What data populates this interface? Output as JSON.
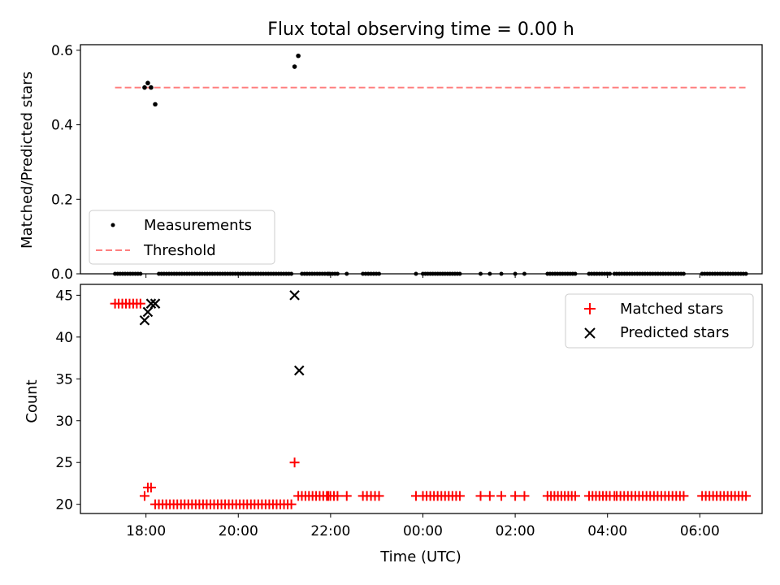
{
  "chart_data": [
    {
      "type": "scatter",
      "title": "Flux total observing time = 0.00 h",
      "xlabel": "",
      "ylabel": "Matched/Predicted stars",
      "xunit": "hours",
      "xlim": [
        16.58,
        31.35
      ],
      "ylim": [
        0,
        0.615
      ],
      "yticks": [
        0.0,
        0.2,
        0.4,
        0.6
      ],
      "ytick_labels": [
        "0.0",
        "0.2",
        "0.4",
        "0.6"
      ],
      "xticks": [
        18,
        20,
        22,
        24,
        26,
        28,
        30
      ],
      "xtick_labels_shown": false,
      "legend": {
        "placement": "lower-left",
        "entries": [
          "Measurements",
          "Threshold"
        ]
      },
      "colors": {
        "measurements": "#000000",
        "threshold": "#ff7f7f"
      },
      "threshold": {
        "name": "Threshold",
        "y": 0.5,
        "x": [
          17.33,
          30.99
        ]
      },
      "measurements": {
        "name": "Measurements",
        "high_points": [
          {
            "x": 17.97,
            "y": 0.5
          },
          {
            "x": 18.04,
            "y": 0.512
          },
          {
            "x": 18.11,
            "y": 0.5
          },
          {
            "x": 18.2,
            "y": 0.455
          },
          {
            "x": 21.22,
            "y": 0.556
          },
          {
            "x": 21.3,
            "y": 0.585
          }
        ],
        "zero_segments": [
          [
            17.33,
            17.88
          ],
          [
            18.28,
            21.15
          ],
          [
            21.38,
            22.15
          ],
          [
            22.7,
            23.05
          ],
          [
            24.0,
            24.8
          ],
          [
            26.7,
            27.3
          ],
          [
            27.6,
            28.05
          ],
          [
            28.2,
            29.65
          ],
          [
            30.05,
            31.0
          ]
        ],
        "zero_singles": [
          21.95,
          22.35,
          23.85,
          25.25,
          25.45,
          25.7,
          26.0,
          26.2,
          28.15
        ],
        "y_zero": 0.0
      }
    },
    {
      "type": "scatter",
      "title": "",
      "xlabel": "Time (UTC)",
      "ylabel": "Count",
      "xunit": "hours",
      "xlim": [
        16.58,
        31.35
      ],
      "ylim": [
        18.9,
        46.3
      ],
      "yticks": [
        20,
        25,
        30,
        35,
        40,
        45
      ],
      "ytick_labels": [
        "20",
        "25",
        "30",
        "35",
        "40",
        "45"
      ],
      "xticks": [
        18,
        20,
        22,
        24,
        26,
        28,
        30
      ],
      "xtick_labels": [
        "18:00",
        "20:00",
        "22:00",
        "00:00",
        "02:00",
        "04:00",
        "06:00"
      ],
      "legend": {
        "placement": "upper-right",
        "entries": [
          "Matched stars",
          "Predicted stars"
        ]
      },
      "colors": {
        "matched": "#ff0000",
        "predicted": "#000000"
      },
      "matched": {
        "name": "Matched stars",
        "points": [
          {
            "x": 17.97,
            "y": 21
          },
          {
            "x": 18.04,
            "y": 22
          },
          {
            "x": 18.11,
            "y": 22
          },
          {
            "x": 18.2,
            "y": 20
          },
          {
            "x": 21.22,
            "y": 25
          }
        ],
        "runs": [
          {
            "y": 44,
            "segments": [
              [
                17.33,
                17.88
              ]
            ]
          },
          {
            "y": 20,
            "segments": [
              [
                18.28,
                21.15
              ]
            ]
          },
          {
            "y": 21,
            "segments": [
              [
                21.3,
                22.15
              ],
              [
                22.7,
                23.05
              ],
              [
                24.0,
                24.8
              ],
              [
                26.7,
                27.3
              ],
              [
                27.6,
                28.05
              ],
              [
                28.2,
                29.65
              ],
              [
                30.05,
                31.0
              ]
            ]
          }
        ],
        "singles": [
          {
            "x": 21.95,
            "y": 21
          },
          {
            "x": 22.35,
            "y": 21
          },
          {
            "x": 23.85,
            "y": 21
          },
          {
            "x": 25.25,
            "y": 21
          },
          {
            "x": 25.45,
            "y": 21
          },
          {
            "x": 25.7,
            "y": 21
          },
          {
            "x": 26.0,
            "y": 21
          },
          {
            "x": 26.2,
            "y": 21
          },
          {
            "x": 28.15,
            "y": 21
          }
        ]
      },
      "predicted": {
        "name": "Predicted stars",
        "points": [
          {
            "x": 17.97,
            "y": 42
          },
          {
            "x": 18.04,
            "y": 43
          },
          {
            "x": 18.11,
            "y": 44
          },
          {
            "x": 18.2,
            "y": 44
          },
          {
            "x": 21.22,
            "y": 45
          },
          {
            "x": 21.32,
            "y": 36
          }
        ]
      }
    }
  ]
}
